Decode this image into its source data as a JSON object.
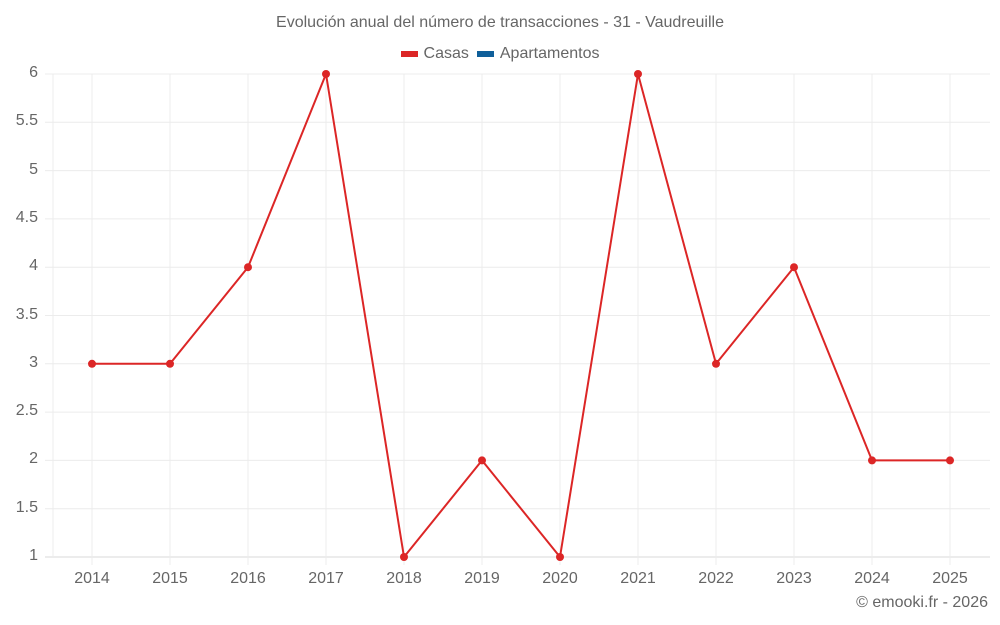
{
  "chart_data": {
    "type": "line",
    "title": "Evolución anual del número de transacciones - 31 - Vaudreuille",
    "xlabel": "",
    "ylabel": "",
    "categories": [
      "2014",
      "2015",
      "2016",
      "2017",
      "2018",
      "2019",
      "2020",
      "2021",
      "2022",
      "2023",
      "2024",
      "2025"
    ],
    "series": [
      {
        "name": "Casas",
        "color": "#dc2626",
        "values": [
          3,
          3,
          4,
          6,
          1,
          2,
          1,
          6,
          3,
          4,
          2,
          2
        ]
      },
      {
        "name": "Apartamentos",
        "color": "#0f5f9a",
        "values": []
      }
    ],
    "ylim": [
      1,
      6
    ],
    "yticks": [
      "6",
      "5.5",
      "5",
      "4.5",
      "4",
      "3.5",
      "3",
      "2.5",
      "2",
      "1.5",
      "1"
    ],
    "grid": true,
    "legend_position": "top"
  },
  "legend": {
    "items": [
      {
        "label": "Casas",
        "color": "#dc2626"
      },
      {
        "label": "Apartamentos",
        "color": "#0f5f9a"
      }
    ]
  },
  "credit": "© emooki.fr - 2026"
}
